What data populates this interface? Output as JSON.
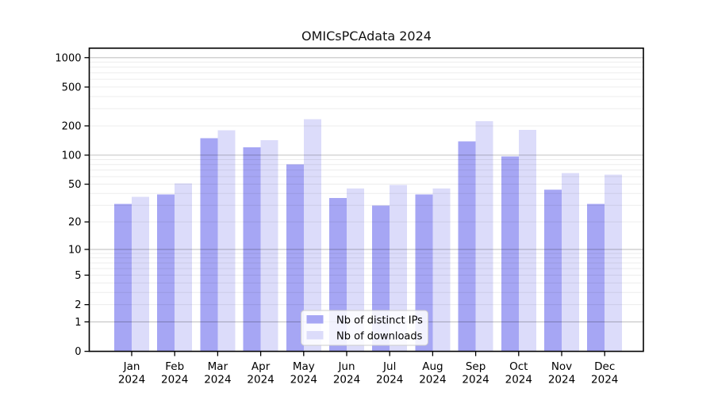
{
  "figure": {
    "title": "OMICsPCAdata 2024"
  },
  "chart_data": {
    "type": "bar",
    "title": "OMICsPCAdata 2024",
    "categories": [
      "Jan",
      "Feb",
      "Mar",
      "Apr",
      "May",
      "Jun",
      "Jul",
      "Aug",
      "Sep",
      "Oct",
      "Nov",
      "Dec"
    ],
    "category_year": "2024",
    "series": [
      {
        "name": "Nb of distinct IPs",
        "color": "#a6a6f4",
        "values": [
          31,
          39,
          150,
          120,
          80,
          36,
          30,
          39,
          138,
          97,
          44,
          31
        ]
      },
      {
        "name": "Nb of downloads",
        "color": "#dcdcfa",
        "values": [
          37,
          51,
          180,
          143,
          235,
          45,
          49,
          45,
          224,
          182,
          65,
          63
        ]
      }
    ],
    "y_axis": {
      "scale": "log1p",
      "ticks": [
        0,
        1,
        2,
        5,
        10,
        20,
        50,
        100,
        200,
        500,
        1000
      ],
      "max": 1250
    },
    "legend": {
      "position": "bottom-center"
    },
    "grid": {
      "on": true,
      "major_color": "#c3c3c3",
      "minor_color": "#ececec"
    }
  }
}
